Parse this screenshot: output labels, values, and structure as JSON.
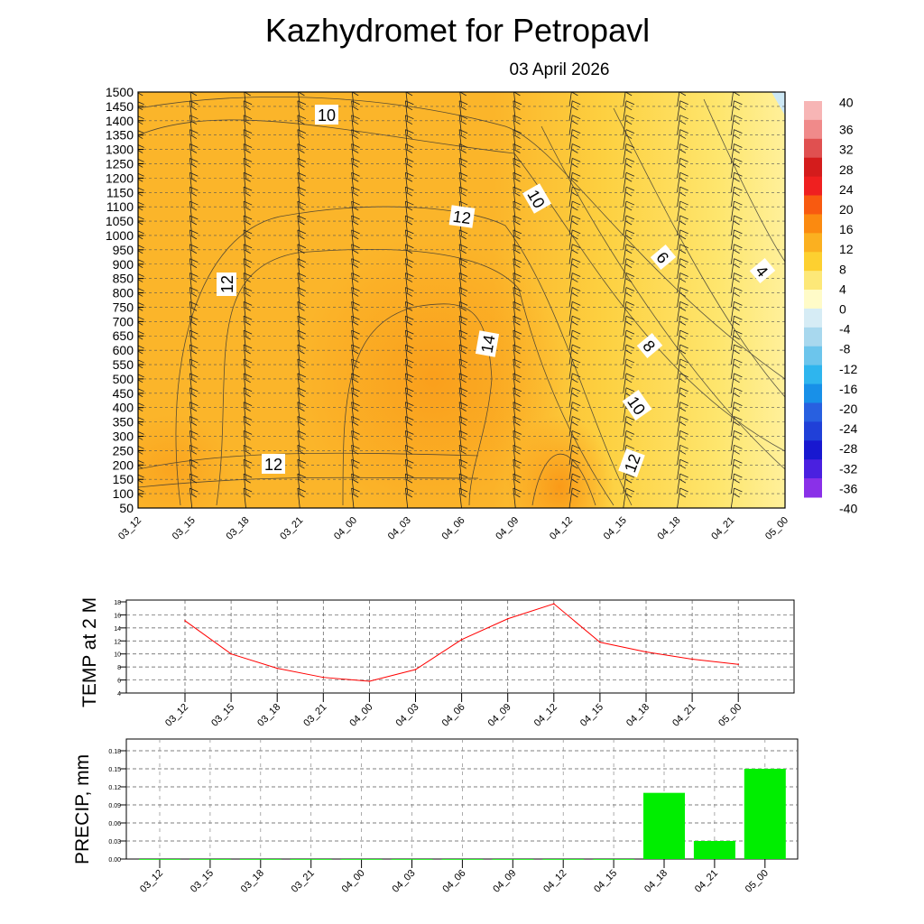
{
  "title": "Kazhydromet  for Petropavl",
  "subtitle": "03 April 2026",
  "chart_data": [
    {
      "type": "heatmap",
      "title": "Temperature cross-section with wind barbs",
      "ylabel": "",
      "y_ticks": [
        50,
        100,
        150,
        200,
        250,
        300,
        350,
        400,
        450,
        500,
        550,
        600,
        650,
        700,
        750,
        800,
        850,
        900,
        950,
        1000,
        1050,
        1100,
        1150,
        1200,
        1250,
        1300,
        1350,
        1400,
        1450,
        1500
      ],
      "ylim": [
        50,
        1500
      ],
      "x_ticks": [
        "03_12",
        "03_15",
        "03_18",
        "03_21",
        "04_00",
        "04_03",
        "04_06",
        "04_09",
        "04_12",
        "04_15",
        "04_18",
        "04_21",
        "05_00"
      ],
      "contour_labels": [
        "10",
        "12",
        "10",
        "12",
        "6",
        "4",
        "14",
        "8",
        "10",
        "12",
        "12"
      ],
      "colorbar": {
        "levels": [
          "40",
          "36",
          "32",
          "28",
          "24",
          "20",
          "16",
          "12",
          "8",
          "4",
          "0",
          "-4",
          "-8",
          "-12",
          "-16",
          "-20",
          "-24",
          "-28",
          "-32",
          "-36",
          "-40"
        ],
        "colors": [
          "#f7b5b5",
          "#f08a8a",
          "#e05050",
          "#d41c1c",
          "#ef2020",
          "#f85a10",
          "#fb8a10",
          "#fbb020",
          "#fdd030",
          "#fde878",
          "#fffbc8",
          "#d6ecf5",
          "#a8d8ee",
          "#6cc5ec",
          "#2eb5ee",
          "#1890e8",
          "#2860e0",
          "#2040d8",
          "#1818d0",
          "#4a20e0",
          "#8a30e8"
        ]
      }
    },
    {
      "type": "line",
      "ylabel": "TEMP at 2 M",
      "categories": [
        "03_12",
        "03_15",
        "03_18",
        "03_21",
        "04_00",
        "04_03",
        "04_06",
        "04_09",
        "04_12",
        "04_15",
        "04_18",
        "04_21",
        "05_00"
      ],
      "values": [
        15.1,
        10.0,
        7.8,
        6.4,
        5.8,
        7.6,
        12.2,
        15.4,
        17.7,
        11.8,
        10.3,
        9.2,
        8.4
      ],
      "y_ticks": [
        "4",
        "6",
        "8",
        "10",
        "12",
        "14",
        "16",
        "18"
      ],
      "ylim": [
        4,
        18
      ],
      "color": "#ff0000",
      "grid": true
    },
    {
      "type": "bar",
      "ylabel": "PRECIP, mm",
      "categories": [
        "03_12",
        "03_15",
        "03_18",
        "03_21",
        "04_00",
        "04_03",
        "04_06",
        "04_09",
        "04_12",
        "04_15",
        "04_18",
        "04_21",
        "05_00"
      ],
      "values": [
        0,
        0,
        0,
        0,
        0,
        0,
        0,
        0,
        0,
        0,
        0.11,
        0.03,
        0.15
      ],
      "y_ticks": [
        "0.00",
        "0.03",
        "0.06",
        "0.09",
        "0.12",
        "0.15",
        "0.18"
      ],
      "ylim": [
        0,
        0.2
      ],
      "color": "#00ee00",
      "grid": true
    }
  ]
}
